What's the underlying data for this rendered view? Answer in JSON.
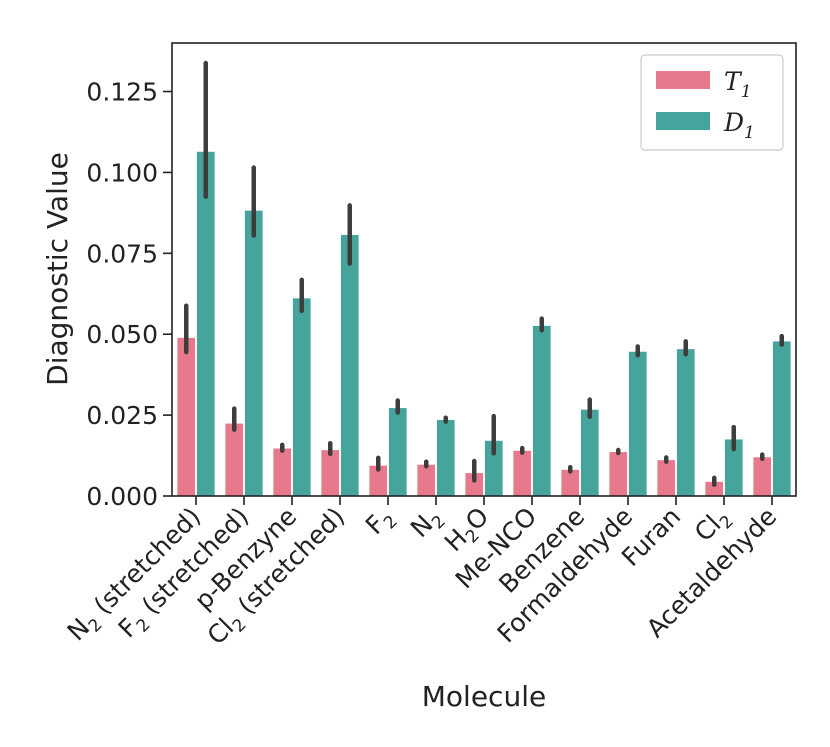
{
  "chart_data": {
    "type": "bar",
    "title": "",
    "xlabel": "Molecule",
    "ylabel": "Diagnostic Value",
    "ylim": [
      0,
      0.14
    ],
    "yticks": [
      "0.000",
      "0.025",
      "0.050",
      "0.075",
      "0.100",
      "0.125"
    ],
    "legend_position": "top-right",
    "colors": {
      "T1": "#e8798c",
      "D1": "#45a49b",
      "errorbar": "#3d3d3d"
    },
    "categories": [
      {
        "base": "N",
        "sub": "2",
        "rest": " (stretched)"
      },
      {
        "base": "F",
        "sub": "2",
        "rest": " (stretched)"
      },
      {
        "base": "p-Benzyne",
        "sub": "",
        "rest": ""
      },
      {
        "base": "Cl",
        "sub": "2",
        "rest": " (stretched)"
      },
      {
        "base": "F",
        "sub": "2",
        "rest": ""
      },
      {
        "base": "N",
        "sub": "2",
        "rest": ""
      },
      {
        "base": "H",
        "sub": "2",
        "rest": "O"
      },
      {
        "base": "Me-NCO",
        "sub": "",
        "rest": ""
      },
      {
        "base": "Benzene",
        "sub": "",
        "rest": ""
      },
      {
        "base": "Formaldehyde",
        "sub": "",
        "rest": ""
      },
      {
        "base": "Furan",
        "sub": "",
        "rest": ""
      },
      {
        "base": "Cl",
        "sub": "2",
        "rest": ""
      },
      {
        "base": "Acetaldehyde",
        "sub": "",
        "rest": ""
      }
    ],
    "series": [
      {
        "name": "T",
        "sub": "1",
        "values": [
          0.049,
          0.0225,
          0.0148,
          0.0143,
          0.0095,
          0.0098,
          0.0072,
          0.0141,
          0.0082,
          0.0137,
          0.0112,
          0.0045,
          0.0121
        ],
        "err_low": [
          0.0445,
          0.0205,
          0.014,
          0.013,
          0.0082,
          0.0092,
          0.0048,
          0.0134,
          0.0076,
          0.0133,
          0.0106,
          0.0035,
          0.0115
        ],
        "err_high": [
          0.0588,
          0.027,
          0.0158,
          0.0163,
          0.0118,
          0.0106,
          0.0108,
          0.0148,
          0.0089,
          0.0142,
          0.0119,
          0.0056,
          0.0128
        ]
      },
      {
        "name": "D",
        "sub": "1",
        "values": [
          0.1065,
          0.0883,
          0.0612,
          0.0808,
          0.0273,
          0.0236,
          0.0172,
          0.0527,
          0.0268,
          0.0447,
          0.0455,
          0.0176,
          0.0479
        ],
        "err_low": [
          0.0925,
          0.0805,
          0.0572,
          0.0718,
          0.0258,
          0.023,
          0.0132,
          0.0512,
          0.0245,
          0.0435,
          0.0438,
          0.0145,
          0.0468
        ],
        "err_high": [
          0.1338,
          0.1015,
          0.0668,
          0.0898,
          0.0295,
          0.0242,
          0.0247,
          0.0548,
          0.0298,
          0.0462,
          0.0478,
          0.0213,
          0.0494
        ]
      }
    ]
  }
}
